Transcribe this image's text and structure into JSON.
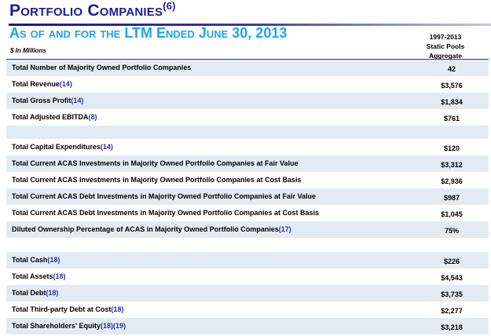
{
  "title": "Portfolio Companies",
  "title_note": "(6)",
  "subtitle": "As of and for the LTM Ended June 30, 2013",
  "units": "$ In Millions",
  "column_header": [
    "1997-2013",
    "Static Pools",
    "Aggregate"
  ],
  "rows": [
    {
      "label": "Total Number of Majority Owned Portfolio Companies",
      "note": "",
      "value": "42"
    },
    {
      "label": "Total Revenue",
      "note": "(14)",
      "value": "$3,576"
    },
    {
      "label": "Total Gross Profit",
      "note": "(14)",
      "value": "$1,834"
    },
    {
      "label": "Total Adjusted EBITDA",
      "note": "(8)",
      "value": "$761"
    },
    {
      "label": "Total Capital Expenditures",
      "note": "(14)",
      "value": "$120"
    },
    {
      "label": "Total Current ACAS Investments in Majority Owned Portfolio Companies at Fair Value",
      "note": "",
      "value": "$3,312"
    },
    {
      "label": "Total Current ACAS Investments in Majority Owned Portfolio Companies at Cost Basis",
      "note": "",
      "value": "$2,936"
    },
    {
      "label": "Total Current ACAS Debt Investments in Majority Owned Portfolio Companies at Fair Value",
      "note": "",
      "value": "$987"
    },
    {
      "label": "Total Current ACAS Debt Investments in Majority Owned Portfolio Companies at Cost Basis",
      "note": "",
      "value": "$1,045"
    },
    {
      "label": "Diluted Ownership Percentage of ACAS in Majority Owned Portfolio Companies",
      "note": "(17)",
      "value": "75%"
    },
    {
      "label": "Total Cash",
      "note": "(18)",
      "value": "$226"
    },
    {
      "label": "Total Assets",
      "note": "(18)",
      "value": "$4,543"
    },
    {
      "label": "Total Debt",
      "note": "(18)",
      "value": "$3,735"
    },
    {
      "label": "Total Third-party Debt at Cost",
      "note": "(18)",
      "value": "$2,277"
    },
    {
      "label": "Total Shareholders' Equity",
      "note": "(18)(19)",
      "value": "$3,218"
    }
  ]
}
